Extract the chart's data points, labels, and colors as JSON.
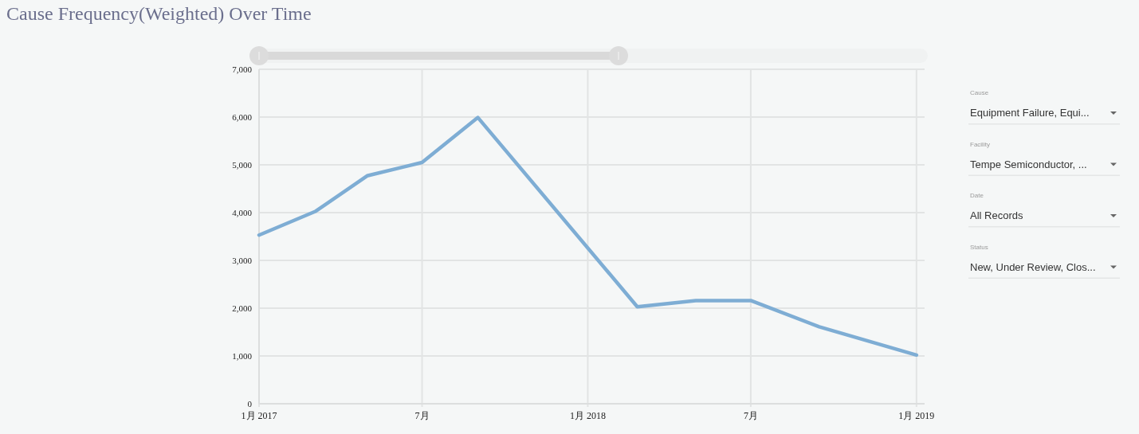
{
  "chart_data": [
    {
      "type": "line",
      "title": "Cause Frequency(Weighted) Over Time",
      "x": [
        "2017-01-01",
        "2017-03-05",
        "2017-05-01",
        "2017-07-01",
        "2017-09-01",
        "2018-02-25",
        "2018-05-01",
        "2018-07-01",
        "2018-09-15",
        "2019-01-01"
      ],
      "series": [
        {
          "color": "#7eadd4",
          "values": [
            3530,
            4030,
            4770,
            5050,
            5990,
            2030,
            2160,
            2160,
            1610,
            1020
          ]
        }
      ],
      "xlim": [
        "2017-01-01",
        "2019-01-10"
      ],
      "xticks": [
        {
          "value": "2017-01-01",
          "label": "1月 2017"
        },
        {
          "value": "2017-07-01",
          "label": "7月"
        },
        {
          "value": "2018-01-01",
          "label": "1月 2018"
        },
        {
          "value": "2018-07-01",
          "label": "7月"
        },
        {
          "value": "2019-01-01",
          "label": "1月 2019"
        }
      ],
      "ylim": [
        0,
        7000
      ],
      "yticks": [
        0,
        {
          "value": 1000,
          "label": "1,000"
        },
        {
          "value": 2000,
          "label": "2,000"
        },
        {
          "value": 3000,
          "label": "3,000"
        },
        {
          "value": 4000,
          "label": "4,000"
        },
        {
          "value": 5000,
          "label": "5,000"
        },
        {
          "value": 6000,
          "label": "6,000"
        },
        {
          "value": 7000,
          "label": "7,000"
        }
      ],
      "grid": true
    },
    {
      "type": "other",
      "annotations": [
        "Cause",
        "Equipment Failure, Equi...",
        "Facility",
        "Tempe Semiconductor, ...",
        "Date",
        "All Records",
        "Status",
        "New, Under Review, Clos..."
      ]
    }
  ]
}
